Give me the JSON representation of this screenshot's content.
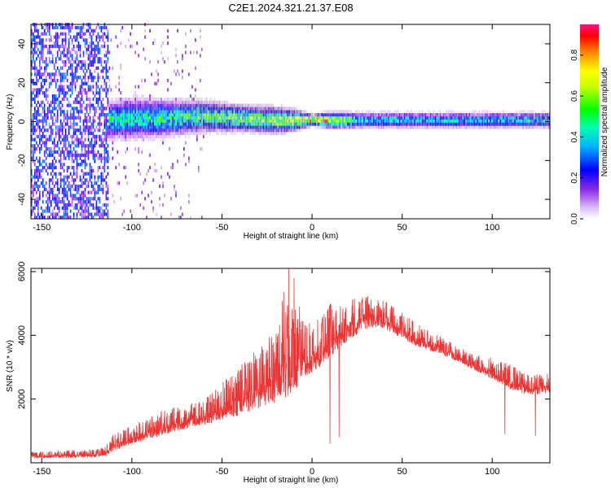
{
  "title": "C2E1.2024.321.21.37.E08",
  "chart_data": [
    {
      "type": "heatmap",
      "xlabel": "Height of straight line (km)",
      "ylabel": "Frequency (Hz)",
      "xlim": [
        -156,
        132
      ],
      "ylim": [
        -50,
        50
      ],
      "x_ticks": [
        -150,
        -100,
        -50,
        0,
        50,
        100
      ],
      "x_tick_labels": [
        "-150",
        "-100",
        "-50",
        "0",
        "50",
        "100"
      ],
      "y_ticks": [
        -40,
        -20,
        0,
        20,
        40
      ],
      "y_tick_labels": [
        "-40",
        "-20",
        "0",
        "20",
        "40"
      ],
      "colorbar": {
        "label": "Normalized spectral amplitude",
        "range": [
          0,
          0.95
        ],
        "ticks": [
          0,
          0.2,
          0.4,
          0.6,
          0.8
        ],
        "tick_labels": [
          "0.0",
          "0.2",
          "0.4",
          "0.6",
          "0.8"
        ],
        "colors": [
          "#ffffff",
          "#b07cf0",
          "#6a00e8",
          "#0000ff",
          "#00c8ff",
          "#00ff80",
          "#40ff00",
          "#ffff00",
          "#ff8000",
          "#ff0000",
          "#ff0080"
        ]
      },
      "band_profile": {
        "x": [
          -156,
          -115,
          -113,
          -100,
          -80,
          -60,
          -40,
          -20,
          -10,
          0,
          10,
          30,
          50,
          80,
          100,
          132
        ],
        "center_hz": [
          0,
          0,
          0,
          1,
          1,
          2,
          1,
          0,
          0,
          0,
          0,
          0,
          0,
          0,
          0,
          0
        ],
        "halfwidth_hz": [
          50,
          50,
          7,
          8,
          7,
          6,
          5,
          5,
          4,
          2,
          3,
          3,
          3,
          3,
          3,
          3
        ],
        "peak_amplitude": [
          0.3,
          0.3,
          0.55,
          0.5,
          0.55,
          0.6,
          0.65,
          0.7,
          0.8,
          0.95,
          0.9,
          0.45,
          0.45,
          0.45,
          0.45,
          0.45
        ]
      }
    },
    {
      "type": "line",
      "xlabel": "Height of straight line (km)",
      "ylabel": "SNR (10 * v/v)",
      "xlim": [
        -156,
        132
      ],
      "ylim": [
        0,
        6100
      ],
      "x_ticks": [
        -150,
        -100,
        -50,
        0,
        50,
        100
      ],
      "x_tick_labels": [
        "-150",
        "-100",
        "-50",
        "0",
        "50",
        "100"
      ],
      "y_ticks": [
        2000,
        4000,
        6000
      ],
      "y_tick_labels": [
        "2000",
        "4000",
        "6000"
      ],
      "color": "#ee3333",
      "envelope": {
        "x": [
          -156,
          -130,
          -115,
          -110,
          -100,
          -80,
          -60,
          -50,
          -40,
          -30,
          -20,
          -15,
          -10,
          -5,
          0,
          5,
          10,
          20,
          30,
          40,
          50,
          60,
          70,
          80,
          90,
          100,
          110,
          120,
          132
        ],
        "low": [
          150,
          150,
          200,
          350,
          600,
          900,
          1200,
          1300,
          1500,
          1700,
          1900,
          2000,
          2200,
          2600,
          2800,
          3000,
          3300,
          3800,
          4200,
          4200,
          3900,
          3600,
          3400,
          3200,
          2900,
          2600,
          2300,
          2100,
          2200
        ],
        "high": [
          350,
          400,
          500,
          900,
          1200,
          1700,
          2000,
          2500,
          3100,
          3600,
          4200,
          5600,
          4900,
          4500,
          4400,
          4900,
          5000,
          5100,
          5300,
          5100,
          4700,
          4300,
          4000,
          3700,
          3400,
          3300,
          3100,
          2800,
          2800
        ]
      },
      "spikes": [
        {
          "x": -13,
          "y": 6080
        },
        {
          "x": -10,
          "y": 5800
        },
        {
          "x": -7,
          "y": 4900
        },
        {
          "x": 10,
          "y": 600
        },
        {
          "x": 15,
          "y": 800
        },
        {
          "x": 107,
          "y": 900
        },
        {
          "x": 124,
          "y": 850
        }
      ]
    }
  ]
}
